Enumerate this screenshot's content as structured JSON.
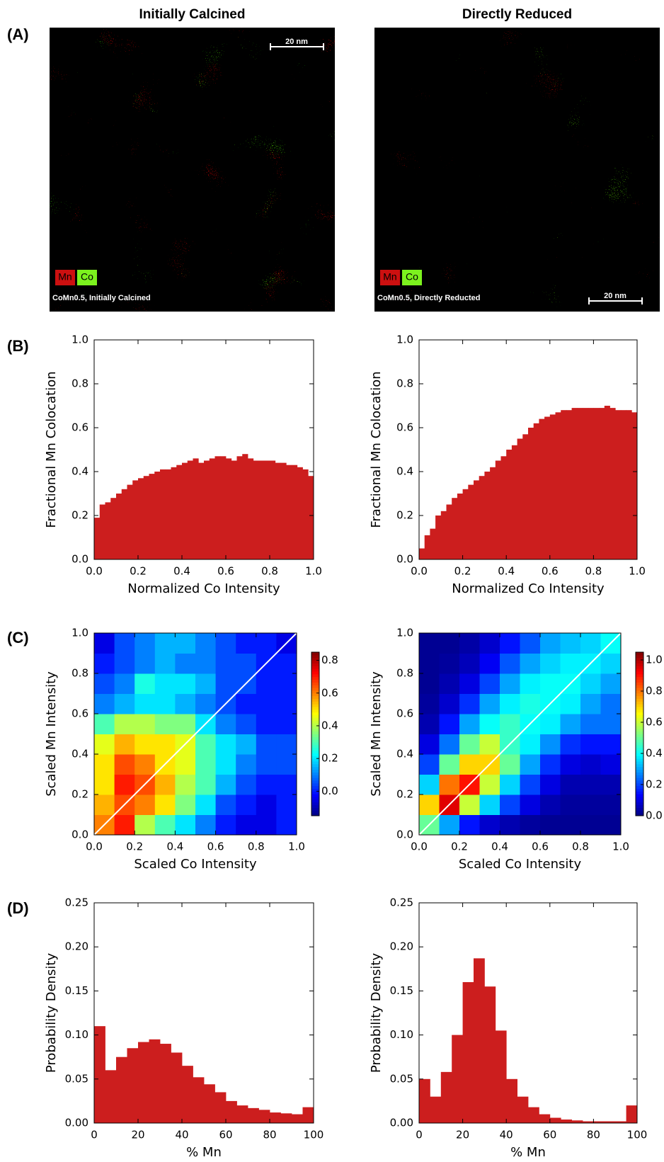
{
  "panel_labels": [
    "(A)",
    "(B)",
    "(C)",
    "(D)"
  ],
  "images": [
    {
      "title": "Initially Calcined",
      "caption": "CoMn0.5, Initially Calcined",
      "legend": [
        "Mn",
        "Co"
      ],
      "scale_bar": "20 nm"
    },
    {
      "title": "Directly Reduced",
      "caption": "CoMn0.5, Directly Reducted",
      "legend": [
        "Mn",
        "Co"
      ],
      "scale_bar": "20 nm"
    }
  ],
  "chart_data": [
    {
      "type": "histogram",
      "xlabel": "Normalized Co Intensity",
      "ylabel": "Fractional Mn Colocation",
      "color": "#cc1e1e",
      "bins": [
        0,
        0.025,
        0.05,
        0.075,
        0.1,
        0.125,
        0.15,
        0.175,
        0.2,
        0.225,
        0.25,
        0.275,
        0.3,
        0.325,
        0.35,
        0.375,
        0.4,
        0.425,
        0.45,
        0.475,
        0.5,
        0.525,
        0.55,
        0.575,
        0.6,
        0.625,
        0.65,
        0.675,
        0.7,
        0.725,
        0.75,
        0.775,
        0.8,
        0.825,
        0.85,
        0.875,
        0.9,
        0.925,
        0.95,
        0.975,
        1
      ],
      "values": [
        0.19,
        0.25,
        0.26,
        0.28,
        0.3,
        0.32,
        0.34,
        0.36,
        0.37,
        0.38,
        0.39,
        0.4,
        0.41,
        0.41,
        0.42,
        0.43,
        0.44,
        0.45,
        0.46,
        0.44,
        0.45,
        0.46,
        0.47,
        0.47,
        0.46,
        0.45,
        0.47,
        0.48,
        0.46,
        0.45,
        0.45,
        0.45,
        0.45,
        0.44,
        0.44,
        0.43,
        0.43,
        0.42,
        0.41,
        0.38
      ],
      "xlim": [
        0,
        1
      ],
      "ylim": [
        0,
        1
      ],
      "xticks": [
        {
          "value": 0,
          "label": "0.0"
        },
        0.2,
        0.4,
        0.6,
        0.8,
        {
          "value": 1,
          "label": "1.0"
        }
      ],
      "yticks": [
        {
          "value": 0,
          "label": "0.0"
        },
        0.2,
        0.4,
        0.6,
        0.8,
        {
          "value": 1,
          "label": "1.0"
        }
      ]
    },
    {
      "type": "histogram",
      "xlabel": "Normalized Co Intensity",
      "ylabel": "Fractional Mn Colocation",
      "color": "#cc1e1e",
      "bins": [
        0,
        0.025,
        0.05,
        0.075,
        0.1,
        0.125,
        0.15,
        0.175,
        0.2,
        0.225,
        0.25,
        0.275,
        0.3,
        0.325,
        0.35,
        0.375,
        0.4,
        0.425,
        0.45,
        0.475,
        0.5,
        0.525,
        0.55,
        0.575,
        0.6,
        0.625,
        0.65,
        0.675,
        0.7,
        0.725,
        0.75,
        0.775,
        0.8,
        0.825,
        0.85,
        0.875,
        0.9,
        0.925,
        0.95,
        0.975,
        1
      ],
      "values": [
        0.05,
        0.11,
        0.14,
        0.2,
        0.22,
        0.25,
        0.28,
        0.3,
        0.32,
        0.34,
        0.36,
        0.38,
        0.4,
        0.42,
        0.45,
        0.47,
        0.5,
        0.52,
        0.55,
        0.57,
        0.6,
        0.62,
        0.64,
        0.65,
        0.66,
        0.67,
        0.68,
        0.68,
        0.69,
        0.69,
        0.69,
        0.69,
        0.69,
        0.69,
        0.7,
        0.69,
        0.68,
        0.68,
        0.68,
        0.67
      ],
      "xlim": [
        0,
        1
      ],
      "ylim": [
        0,
        1
      ],
      "xticks": [
        {
          "value": 0,
          "label": "0.0"
        },
        0.2,
        0.4,
        0.6,
        0.8,
        {
          "value": 1,
          "label": "1.0"
        }
      ],
      "yticks": [
        {
          "value": 0,
          "label": "0.0"
        },
        0.2,
        0.4,
        0.6,
        0.8,
        {
          "value": 1,
          "label": "1.0"
        }
      ]
    },
    {
      "type": "heatmap",
      "xlabel": "Scaled Co Intensity",
      "ylabel": "Scaled Mn Intensity",
      "xlim": [
        0,
        1
      ],
      "ylim": [
        0,
        1
      ],
      "clim": [
        -0.15,
        0.85
      ],
      "xticks": [
        {
          "value": 0,
          "label": "0.0"
        },
        0.2,
        0.4,
        0.6,
        0.8,
        {
          "value": 1,
          "label": "1.0"
        }
      ],
      "yticks": [
        {
          "value": 0,
          "label": "0.0"
        },
        0.2,
        0.4,
        0.6,
        0.8,
        {
          "value": 1,
          "label": "1.0"
        }
      ],
      "cticks": [
        {
          "value": 0,
          "label": "0.0"
        },
        0.2,
        0.4,
        0.6,
        0.8
      ],
      "z": [
        [
          0.6,
          0.7,
          0.4,
          0.3,
          0.2,
          0.1,
          0.0,
          -0.05,
          -0.05,
          0.0
        ],
        [
          0.55,
          0.65,
          0.6,
          0.5,
          0.35,
          0.2,
          0.05,
          0.0,
          -0.05,
          0.0
        ],
        [
          0.5,
          0.7,
          0.65,
          0.55,
          0.4,
          0.3,
          0.15,
          0.05,
          0.0,
          0.0
        ],
        [
          0.5,
          0.65,
          0.6,
          0.5,
          0.45,
          0.3,
          0.2,
          0.1,
          0.05,
          0.05
        ],
        [
          0.45,
          0.55,
          0.5,
          0.5,
          0.45,
          0.3,
          0.2,
          0.15,
          0.05,
          0.05
        ],
        [
          0.3,
          0.4,
          0.4,
          0.35,
          0.35,
          0.2,
          0.1,
          0.05,
          0.0,
          0.0
        ],
        [
          0.1,
          0.15,
          0.2,
          0.2,
          0.15,
          0.1,
          0.05,
          0.0,
          0.0,
          0.0
        ],
        [
          0.05,
          0.1,
          0.25,
          0.2,
          0.2,
          0.15,
          0.05,
          0.05,
          0.0,
          0.0
        ],
        [
          0.0,
          0.05,
          0.1,
          0.15,
          0.1,
          0.1,
          0.05,
          0.05,
          0.0,
          0.0
        ],
        [
          -0.05,
          0.05,
          0.1,
          0.15,
          0.15,
          0.1,
          0.05,
          0.0,
          0.0,
          -0.05
        ]
      ]
    },
    {
      "type": "heatmap",
      "xlabel": "Scaled Co Intensity",
      "ylabel": "Scaled Mn Intensity",
      "xlim": [
        0,
        1
      ],
      "ylim": [
        0,
        1
      ],
      "clim": [
        0,
        1.05
      ],
      "xticks": [
        {
          "value": 0,
          "label": "0.0"
        },
        0.2,
        0.4,
        0.6,
        0.8,
        {
          "value": 1,
          "label": "1.0"
        }
      ],
      "yticks": [
        {
          "value": 0,
          "label": "0.0"
        },
        0.2,
        0.4,
        0.6,
        0.8,
        {
          "value": 1,
          "label": "1.0"
        }
      ],
      "cticks": [
        {
          "value": 0,
          "label": "0.0"
        },
        0.2,
        0.4,
        0.6,
        0.8,
        {
          "value": 1,
          "label": "1.0"
        }
      ],
      "z": [
        [
          0.5,
          0.3,
          0.15,
          0.08,
          0.05,
          0.03,
          0.02,
          0.02,
          0.02,
          0.02
        ],
        [
          0.7,
          0.95,
          0.6,
          0.35,
          0.2,
          0.1,
          0.05,
          0.03,
          0.03,
          0.03
        ],
        [
          0.35,
          0.8,
          0.9,
          0.6,
          0.35,
          0.2,
          0.1,
          0.05,
          0.05,
          0.05
        ],
        [
          0.2,
          0.5,
          0.7,
          0.7,
          0.5,
          0.3,
          0.18,
          0.1,
          0.08,
          0.1
        ],
        [
          0.1,
          0.25,
          0.5,
          0.6,
          0.45,
          0.38,
          0.28,
          0.18,
          0.15,
          0.15
        ],
        [
          0.05,
          0.15,
          0.3,
          0.4,
          0.45,
          0.4,
          0.38,
          0.3,
          0.25,
          0.25
        ],
        [
          0.03,
          0.08,
          0.18,
          0.3,
          0.38,
          0.42,
          0.4,
          0.38,
          0.3,
          0.25
        ],
        [
          0.02,
          0.05,
          0.1,
          0.2,
          0.3,
          0.38,
          0.4,
          0.4,
          0.35,
          0.3
        ],
        [
          0.02,
          0.03,
          0.06,
          0.12,
          0.22,
          0.3,
          0.35,
          0.38,
          0.38,
          0.35
        ],
        [
          0.02,
          0.02,
          0.04,
          0.08,
          0.15,
          0.22,
          0.3,
          0.33,
          0.35,
          0.4
        ]
      ]
    },
    {
      "type": "histogram",
      "xlabel": "% Mn",
      "ylabel": "Probability Density",
      "color": "#cc1e1e",
      "bins": [
        0,
        5,
        10,
        15,
        20,
        25,
        30,
        35,
        40,
        45,
        50,
        55,
        60,
        65,
        70,
        75,
        80,
        85,
        90,
        95,
        100
      ],
      "values": [
        0.11,
        0.06,
        0.075,
        0.085,
        0.092,
        0.095,
        0.09,
        0.08,
        0.065,
        0.052,
        0.044,
        0.035,
        0.025,
        0.02,
        0.017,
        0.015,
        0.012,
        0.011,
        0.01,
        0.018
      ],
      "xlim": [
        0,
        100
      ],
      "ylim": [
        0,
        0.25
      ],
      "xticks": [
        0,
        20,
        40,
        60,
        80,
        100
      ],
      "yticks": [
        {
          "value": 0,
          "label": "0.00"
        },
        0.05,
        {
          "value": 0.1,
          "label": "0.10"
        },
        0.15,
        {
          "value": 0.2,
          "label": "0.20"
        },
        0.25
      ]
    },
    {
      "type": "histogram",
      "xlabel": "% Mn",
      "ylabel": "Probability Density",
      "color": "#cc1e1e",
      "bins": [
        0,
        5,
        10,
        15,
        20,
        25,
        30,
        35,
        40,
        45,
        50,
        55,
        60,
        65,
        70,
        75,
        80,
        85,
        90,
        95,
        100
      ],
      "values": [
        0.05,
        0.03,
        0.058,
        0.1,
        0.16,
        0.187,
        0.155,
        0.105,
        0.05,
        0.03,
        0.018,
        0.01,
        0.006,
        0.004,
        0.003,
        0.002,
        0.002,
        0.002,
        0.002,
        0.02
      ],
      "xlim": [
        0,
        100
      ],
      "ylim": [
        0,
        0.25
      ],
      "xticks": [
        0,
        20,
        40,
        60,
        80,
        100
      ],
      "yticks": [
        {
          "value": 0,
          "label": "0.00"
        },
        0.05,
        {
          "value": 0.1,
          "label": "0.10"
        },
        0.15,
        {
          "value": 0.2,
          "label": "0.20"
        },
        0.25
      ]
    }
  ]
}
